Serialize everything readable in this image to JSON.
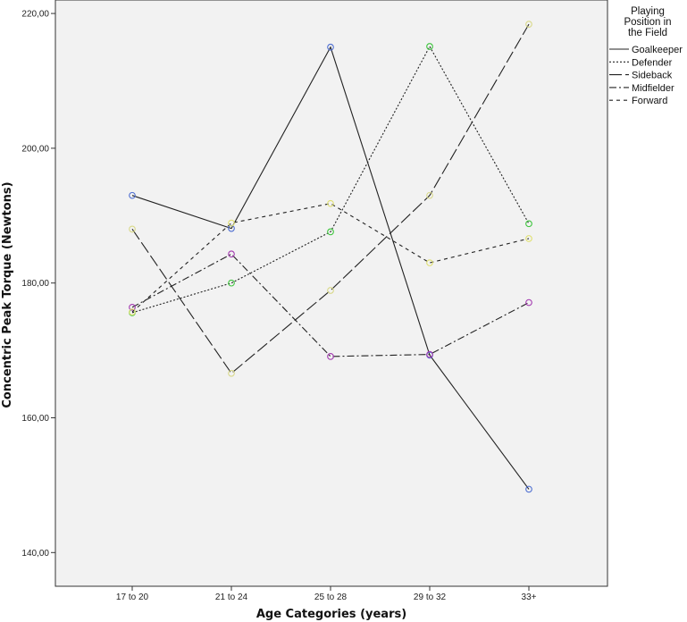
{
  "chart_data": {
    "type": "line",
    "xlabel": "Age Categories (years)",
    "ylabel": "Concentric Peak Torque (Newtons)",
    "categories": [
      "17 to 20",
      "21 to 24",
      "25 to 28",
      "29 to 32",
      "33+"
    ],
    "ylim": [
      135,
      222
    ],
    "yticks": [
      140,
      160,
      180,
      200,
      220
    ],
    "ytick_labels": [
      "140,00",
      "160,00",
      "180,00",
      "200,00",
      "220,00"
    ],
    "grid": false,
    "legend": {
      "title": [
        "Playing",
        "Position in",
        "the Field"
      ],
      "placement": "right"
    },
    "series": [
      {
        "name": "Goalkeeper",
        "values": [
          193.0,
          188.1,
          215.0,
          169.3,
          149.4
        ],
        "dash": "solid",
        "marker_color": "#4f6fd1"
      },
      {
        "name": "Defender",
        "values": [
          175.6,
          180.0,
          187.6,
          215.1,
          188.8
        ],
        "dash": "dot",
        "marker_color": "#3cc43c"
      },
      {
        "name": "Sideback",
        "values": [
          188.0,
          166.6,
          178.9,
          193.0,
          218.4
        ],
        "dash": "longdash",
        "marker_color": "#d9d98a"
      },
      {
        "name": "Midfielder",
        "values": [
          176.4,
          184.3,
          169.1,
          169.4,
          177.1
        ],
        "dash": "dashdot",
        "marker_color": "#a33ab0"
      },
      {
        "name": "Forward",
        "values": [
          175.7,
          188.9,
          191.8,
          183.0,
          186.6
        ],
        "dash": "shortdash",
        "marker_color": "#e0e070"
      }
    ]
  }
}
